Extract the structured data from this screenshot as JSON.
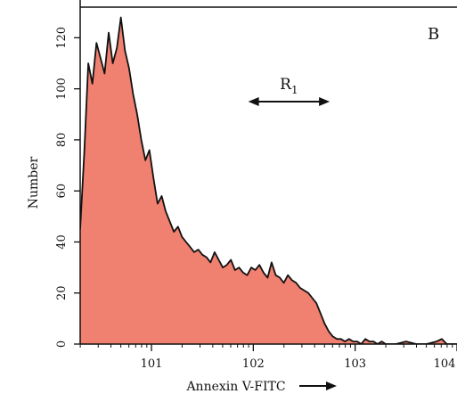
{
  "chart_data": {
    "type": "area",
    "panel_label": "B",
    "xlabel": "Annexin V-FITC",
    "ylabel": "Number",
    "xscale": "log",
    "xlim": [
      100.3,
      104
    ],
    "ylim": [
      0,
      132
    ],
    "x_ticks": [
      {
        "value": 101,
        "label": "101"
      },
      {
        "value": 102,
        "label": "102"
      },
      {
        "value": 103,
        "label": "103"
      },
      {
        "value": 104,
        "label": "104"
      }
    ],
    "y_ticks": [
      {
        "value": 0,
        "label": "0"
      },
      {
        "value": 20,
        "label": "20"
      },
      {
        "value": 40,
        "label": "40"
      },
      {
        "value": 60,
        "label": "60"
      },
      {
        "value": 80,
        "label": "80"
      },
      {
        "value": 100,
        "label": "100"
      },
      {
        "value": 120,
        "label": "120"
      }
    ],
    "region": {
      "label": "R",
      "subscript": "1",
      "x_start": 101.95,
      "x_end": 102.75,
      "y": 95
    },
    "colors": {
      "fill": "#f08070",
      "line": "#111111"
    },
    "series": [
      {
        "x": [
          100.3,
          100.34,
          100.38,
          100.42,
          100.46,
          100.5,
          100.54,
          100.58,
          100.62,
          100.66,
          100.7,
          100.74,
          100.78,
          100.82,
          100.86,
          100.9,
          100.94,
          100.98,
          101.02,
          101.06,
          101.1,
          101.14,
          101.18,
          101.22,
          101.26,
          101.3,
          101.34,
          101.38,
          101.42,
          101.46,
          101.5,
          101.54,
          101.58,
          101.62,
          101.66,
          101.7,
          101.74,
          101.78,
          101.82,
          101.86,
          101.9,
          101.94,
          101.98,
          102.02,
          102.06,
          102.1,
          102.14,
          102.18,
          102.22,
          102.26,
          102.3,
          102.34,
          102.38,
          102.42,
          102.46,
          102.5,
          102.54,
          102.58,
          102.62,
          102.66,
          102.7,
          102.74,
          102.78,
          102.82,
          102.86,
          102.9,
          102.94,
          102.98,
          103.02,
          103.06,
          103.1,
          103.14,
          103.18,
          103.22,
          103.26,
          103.3,
          103.4,
          103.5,
          103.6,
          103.7,
          103.8,
          103.85,
          103.9,
          104.0
        ],
        "values": [
          45,
          75,
          110,
          102,
          118,
          112,
          106,
          122,
          110,
          116,
          128,
          115,
          108,
          98,
          90,
          80,
          72,
          76,
          65,
          55,
          58,
          52,
          48,
          44,
          46,
          42,
          40,
          38,
          36,
          37,
          35,
          34,
          32,
          36,
          33,
          30,
          31,
          33,
          29,
          30,
          28,
          27,
          30,
          29,
          31,
          28,
          26,
          32,
          27,
          26,
          24,
          27,
          25,
          24,
          22,
          21,
          20,
          18,
          16,
          12,
          8,
          5,
          3,
          2,
          2,
          1,
          2,
          1,
          1,
          0,
          2,
          1,
          1,
          0,
          1,
          0,
          0,
          1,
          0,
          0,
          1,
          2,
          0,
          0
        ]
      }
    ]
  }
}
